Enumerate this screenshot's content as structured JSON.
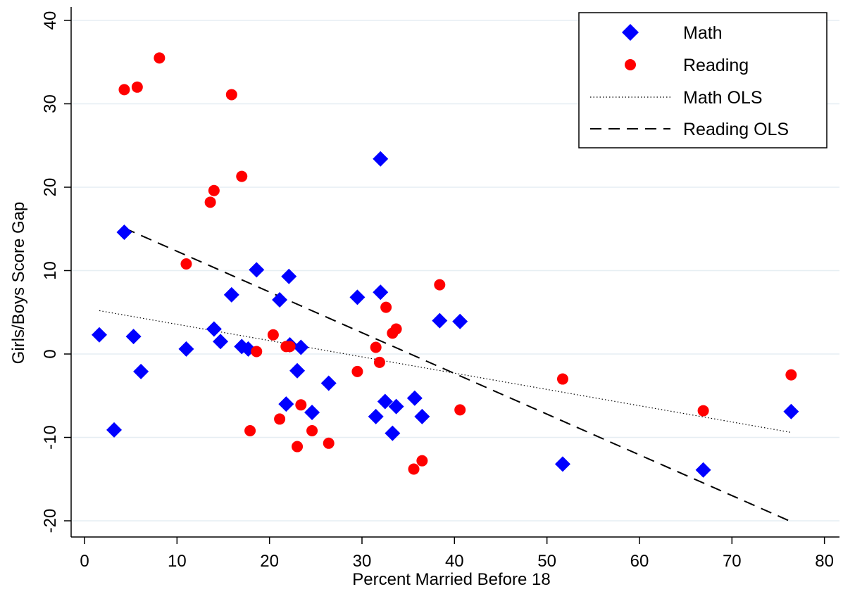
{
  "chart_data": {
    "type": "scatter",
    "xlabel": "Percent Married Before 18",
    "ylabel": "Girls/Boys Score Gap",
    "xlim": [
      0,
      80
    ],
    "ylim": [
      -20,
      40
    ],
    "xticks": [
      0,
      10,
      20,
      30,
      40,
      50,
      60,
      70,
      80
    ],
    "yticks": [
      -20,
      -10,
      0,
      10,
      20,
      30,
      40
    ],
    "grid": "horizontal",
    "legend_position": "top-right",
    "series": [
      {
        "name": "Math",
        "marker": "diamond",
        "color": "#0000ff",
        "points": [
          [
            1.6,
            2.3
          ],
          [
            3.2,
            -9.1
          ],
          [
            4.3,
            14.6
          ],
          [
            5.3,
            2.1
          ],
          [
            6.1,
            -2.1
          ],
          [
            11.0,
            0.6
          ],
          [
            14.0,
            3.0
          ],
          [
            14.7,
            1.5
          ],
          [
            15.9,
            7.1
          ],
          [
            17.0,
            0.9
          ],
          [
            17.7,
            0.6
          ],
          [
            18.6,
            10.1
          ],
          [
            21.1,
            6.5
          ],
          [
            21.8,
            -6.0
          ],
          [
            22.1,
            9.3
          ],
          [
            22.2,
            1.1
          ],
          [
            23.0,
            -2.0
          ],
          [
            23.4,
            0.8
          ],
          [
            24.6,
            -7.0
          ],
          [
            26.4,
            -3.5
          ],
          [
            29.5,
            6.8
          ],
          [
            31.5,
            -7.5
          ],
          [
            32.0,
            7.4
          ],
          [
            32.0,
            23.4
          ],
          [
            32.5,
            -5.7
          ],
          [
            33.3,
            -9.5
          ],
          [
            33.7,
            -6.3
          ],
          [
            35.7,
            -5.3
          ],
          [
            36.5,
            -7.5
          ],
          [
            38.4,
            4.0
          ],
          [
            40.6,
            3.9
          ],
          [
            51.7,
            -13.2
          ],
          [
            66.9,
            -13.9
          ],
          [
            76.4,
            -6.9
          ]
        ]
      },
      {
        "name": "Reading",
        "marker": "circle",
        "color": "#ff0000",
        "points": [
          [
            4.3,
            31.7
          ],
          [
            5.7,
            32.0
          ],
          [
            8.1,
            35.5
          ],
          [
            11.0,
            10.8
          ],
          [
            13.6,
            18.2
          ],
          [
            14.0,
            19.6
          ],
          [
            15.9,
            31.1
          ],
          [
            17.0,
            21.3
          ],
          [
            17.9,
            -9.2
          ],
          [
            18.6,
            0.3
          ],
          [
            20.4,
            2.3
          ],
          [
            21.1,
            -7.8
          ],
          [
            21.8,
            0.9
          ],
          [
            22.2,
            0.9
          ],
          [
            23.0,
            -11.1
          ],
          [
            23.4,
            -6.1
          ],
          [
            24.6,
            -9.2
          ],
          [
            26.4,
            -10.7
          ],
          [
            29.5,
            -2.1
          ],
          [
            31.5,
            0.8
          ],
          [
            31.9,
            -1.0
          ],
          [
            32.6,
            5.6
          ],
          [
            33.3,
            2.5
          ],
          [
            33.7,
            3.0
          ],
          [
            35.6,
            -13.8
          ],
          [
            36.5,
            -12.8
          ],
          [
            38.4,
            8.3
          ],
          [
            40.6,
            -6.7
          ],
          [
            51.7,
            -3.0
          ],
          [
            66.9,
            -6.8
          ],
          [
            76.4,
            -2.5
          ]
        ]
      },
      {
        "name": "Math OLS",
        "type": "line",
        "style": "dotted",
        "color": "#000000",
        "points": [
          [
            1.6,
            5.2
          ],
          [
            76.4,
            -9.4
          ]
        ]
      },
      {
        "name": "Reading OLS",
        "type": "line",
        "style": "dashed",
        "color": "#000000",
        "points": [
          [
            4.3,
            15.1
          ],
          [
            76.4,
            -20.1
          ]
        ]
      }
    ]
  }
}
